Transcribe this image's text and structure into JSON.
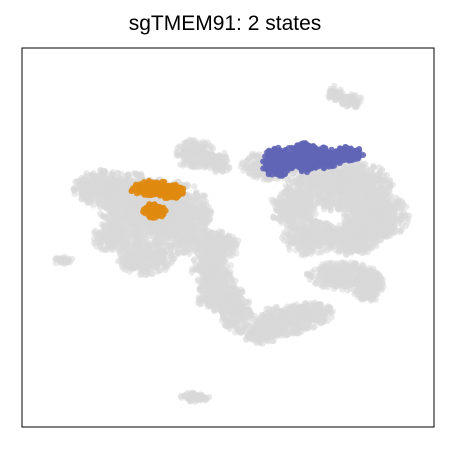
{
  "chart_data": {
    "type": "scatter",
    "title": "sgTMEM91: 2 states",
    "xlabel": "",
    "ylabel": "",
    "axes_ticks": false,
    "grid": false,
    "legend": "none",
    "series": [
      {
        "role": "background",
        "color": "#d8d8d8",
        "regions": [
          {
            "blobs": [
              [
                0.42,
                0.28,
                0.05,
                0.04
              ],
              [
                0.48,
                0.3,
                0.03,
                0.03
              ]
            ]
          },
          {
            "blobs": [
              [
                0.2,
                0.37,
                0.08,
                0.05
              ],
              [
                0.28,
                0.42,
                0.1,
                0.09
              ],
              [
                0.38,
                0.45,
                0.08,
                0.1
              ],
              [
                0.3,
                0.55,
                0.07,
                0.05
              ],
              [
                0.22,
                0.5,
                0.05,
                0.04
              ]
            ]
          },
          {
            "blobs": [
              [
                0.47,
                0.52,
                0.06,
                0.04
              ],
              [
                0.46,
                0.58,
                0.05,
                0.05
              ],
              [
                0.48,
                0.65,
                0.06,
                0.05
              ],
              [
                0.52,
                0.7,
                0.04,
                0.05
              ]
            ]
          },
          {
            "blobs": [
              [
                0.64,
                0.72,
                0.08,
                0.04
              ],
              [
                0.58,
                0.75,
                0.05,
                0.03
              ],
              [
                0.7,
                0.7,
                0.06,
                0.03
              ]
            ]
          },
          {
            "blobs": [
              [
                0.6,
                0.31,
                0.07,
                0.04
              ],
              [
                0.77,
                0.36,
                0.13,
                0.07
              ],
              [
                0.86,
                0.44,
                0.08,
                0.07
              ],
              [
                0.8,
                0.5,
                0.07,
                0.05
              ],
              [
                0.7,
                0.5,
                0.07,
                0.05
              ],
              [
                0.66,
                0.42,
                0.06,
                0.05
              ]
            ]
          },
          {
            "blobs": [
              [
                0.78,
                0.6,
                0.09,
                0.04
              ],
              [
                0.84,
                0.63,
                0.04,
                0.04
              ]
            ]
          },
          {
            "blobs": [
              [
                0.8,
                0.14,
                0.03,
                0.02
              ],
              [
                0.76,
                0.12,
                0.02,
                0.02
              ]
            ]
          },
          {
            "blobs": [
              [
                0.1,
                0.56,
                0.03,
                0.01
              ]
            ]
          },
          {
            "blobs": [
              [
                0.42,
                0.92,
                0.04,
                0.015
              ]
            ]
          }
        ]
      },
      {
        "role": "state",
        "color": "#6065b6",
        "regions": [
          {
            "blobs": [
              [
                0.62,
                0.3,
                0.04,
                0.04
              ],
              [
                0.68,
                0.29,
                0.05,
                0.04
              ],
              [
                0.73,
                0.29,
                0.05,
                0.03
              ],
              [
                0.79,
                0.28,
                0.04,
                0.02
              ],
              [
                0.69,
                0.27,
                0.03,
                0.02
              ]
            ]
          }
        ]
      },
      {
        "role": "state",
        "color": "#e08a10",
        "regions": [
          {
            "blobs": [
              [
                0.32,
                0.37,
                0.06,
                0.02
              ],
              [
                0.36,
                0.38,
                0.04,
                0.02
              ]
            ]
          },
          {
            "blobs": [
              [
                0.32,
                0.43,
                0.03,
                0.02
              ]
            ]
          }
        ]
      }
    ]
  }
}
